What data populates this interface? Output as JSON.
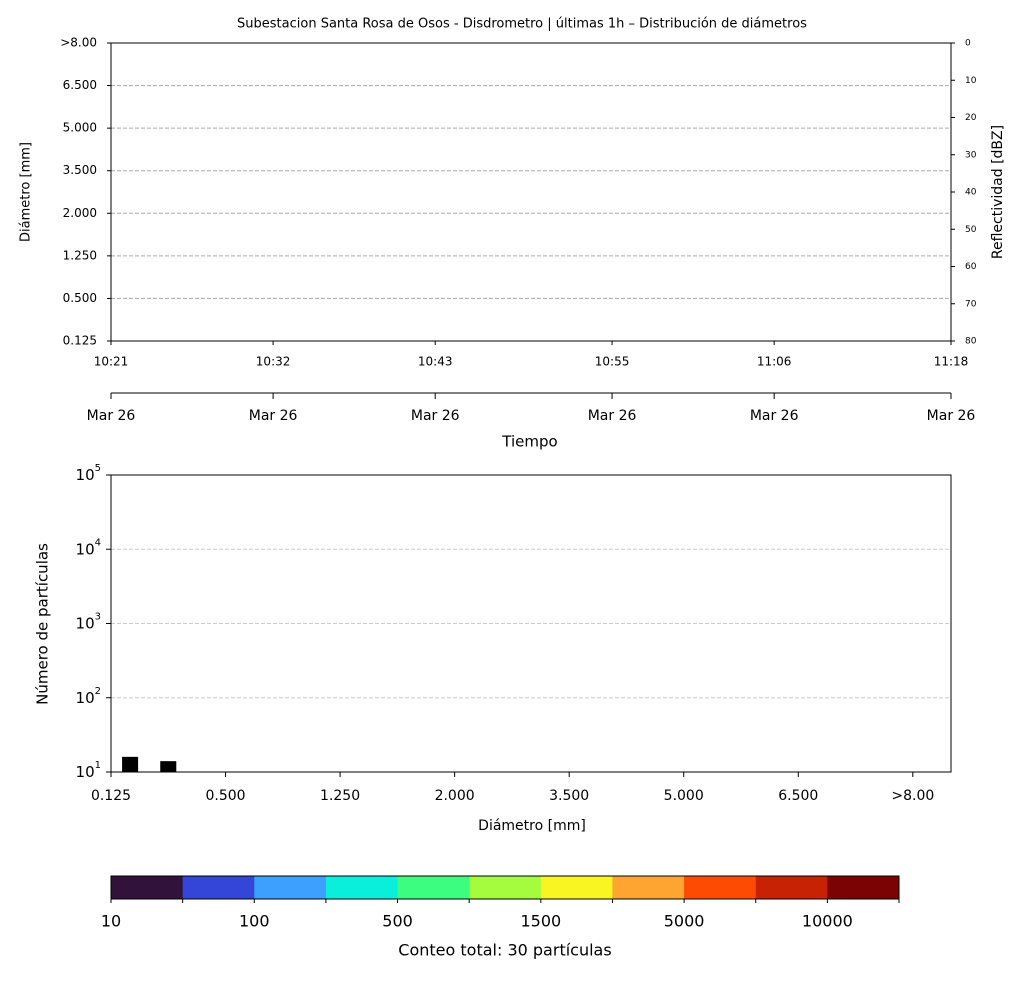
{
  "chart_data": [
    {
      "type": "heatmap",
      "title": "Subestacion Santa Rosa de Osos - Disdrometro | últimas 1h – Distribución de diámetros",
      "ylabel": "Diámetro [mm]",
      "y2label": "Reflectividad [dBZ]",
      "xlabel": "Tiempo",
      "xlim": [
        0,
        57
      ],
      "xticks": [
        {
          "value": 0,
          "label": "10:21"
        },
        {
          "value": 11,
          "label": "10:32"
        },
        {
          "value": 22,
          "label": "10:43"
        },
        {
          "value": 34,
          "label": "10:55"
        },
        {
          "value": 45,
          "label": "11:06"
        },
        {
          "value": 57,
          "label": "11:18"
        }
      ],
      "x2ticks": [
        {
          "value": 0,
          "label": "Mar 26"
        },
        {
          "value": 11,
          "label": "Mar 26"
        },
        {
          "value": 22,
          "label": "Mar 26"
        },
        {
          "value": 34,
          "label": "Mar 26"
        },
        {
          "value": 45,
          "label": "Mar 26"
        },
        {
          "value": 57,
          "label": "Mar 26"
        }
      ],
      "ylim": [
        0,
        7
      ],
      "yticks": [
        {
          "value": 0,
          "label": "0.125"
        },
        {
          "value": 1,
          "label": "0.500"
        },
        {
          "value": 2,
          "label": "1.250"
        },
        {
          "value": 3,
          "label": "2.000"
        },
        {
          "value": 4,
          "label": "3.500"
        },
        {
          "value": 5,
          "label": "5.000"
        },
        {
          "value": 6,
          "label": "6.500"
        },
        {
          "value": 7,
          "label": ">8.00"
        }
      ],
      "y2lim": [
        80,
        0
      ],
      "y2ticks": [
        0,
        10,
        20,
        30,
        40,
        50,
        60,
        70,
        80
      ],
      "grid": true
    },
    {
      "type": "bar",
      "xlabel": "Diámetro [mm]",
      "ylabel": "Número de partículas",
      "x": [
        0.5,
        1.5
      ],
      "values": [
        16,
        14
      ],
      "color": "#000000",
      "xlim": [
        0,
        22
      ],
      "xticks": [
        {
          "value": 0,
          "label": "0.125"
        },
        {
          "value": 3,
          "label": "0.500"
        },
        {
          "value": 6,
          "label": "1.250"
        },
        {
          "value": 9,
          "label": "2.000"
        },
        {
          "value": 12,
          "label": "3.500"
        },
        {
          "value": 15,
          "label": "5.000"
        },
        {
          "value": 18,
          "label": "6.500"
        },
        {
          "value": 21,
          "label": ">8.00"
        }
      ],
      "ylim": [
        10,
        100000
      ],
      "log_scale": true,
      "yticks": [
        {
          "value": 10,
          "label": "10",
          "exponent": "1"
        },
        {
          "value": 100,
          "label": "10",
          "exponent": "2"
        },
        {
          "value": 1000,
          "label": "10",
          "exponent": "3"
        },
        {
          "value": 10000,
          "label": "10",
          "exponent": "4"
        },
        {
          "value": 100000,
          "label": "10",
          "exponent": "5"
        }
      ],
      "grid": true
    },
    {
      "type": "colorbar",
      "colors": [
        "#30123b",
        "#3346d8",
        "#3d9ffe",
        "#0aefdc",
        "#3cfd7f",
        "#a4fc3c",
        "#f8f523",
        "#fea431",
        "#fe4b04",
        "#c72203",
        "#7a0403"
      ],
      "ticks": [
        10,
        100,
        500,
        1500,
        5000,
        10000
      ],
      "label": "Conteo total: 30 partículas"
    }
  ]
}
